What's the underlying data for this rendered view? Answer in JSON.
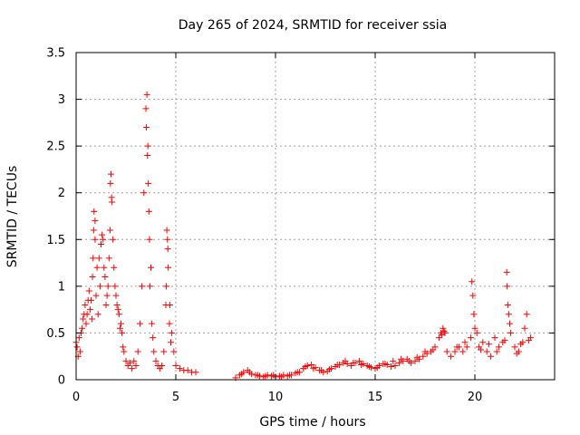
{
  "chart_data": {
    "type": "scatter",
    "title": "Day 265 of 2024, SRMTID for receiver ssia",
    "xlabel": "GPS time / hours",
    "ylabel": "SRMTID / TECUs",
    "xlim": [
      0,
      24
    ],
    "ylim": [
      0,
      3.5
    ],
    "xticks": [
      0,
      5,
      10,
      15,
      20
    ],
    "xtick_labels": [
      "0",
      "5",
      "10",
      "15",
      "20"
    ],
    "yticks": [
      0,
      0.5,
      1,
      1.5,
      2,
      2.5,
      3,
      3.5
    ],
    "ytick_labels": [
      "0",
      "0.5",
      "1",
      "1.5",
      "2",
      "2.5",
      "3",
      "3.5"
    ],
    "grid": true,
    "marker": "+",
    "color": "#ff0000",
    "series": [
      {
        "name": "SRMTID",
        "x": [
          0.0,
          0.1,
          0.2,
          0.3,
          0.4,
          0.5,
          0.6,
          0.7,
          0.8,
          0.85,
          0.9,
          0.95,
          1.0,
          1.1,
          1.2,
          1.3,
          1.4,
          1.5,
          1.6,
          1.7,
          1.75,
          1.8,
          1.9,
          2.0,
          2.1,
          2.2,
          2.3,
          2.4,
          2.5,
          2.6,
          2.7,
          2.8,
          2.9,
          3.0,
          3.1,
          3.2,
          3.3,
          3.4,
          3.5,
          3.55,
          3.6,
          3.65,
          3.7,
          3.8,
          3.9,
          4.0,
          4.1,
          4.2,
          4.3,
          4.4,
          4.5,
          4.55,
          4.6,
          4.7,
          4.8,
          4.9,
          5.0,
          5.2,
          5.4,
          5.6,
          5.8,
          6.0,
          0.05,
          0.15,
          0.25,
          0.35,
          0.45,
          0.55,
          0.65,
          0.75,
          0.82,
          0.88,
          0.95,
          1.05,
          1.15,
          1.25,
          1.35,
          1.45,
          1.55,
          1.65,
          1.72,
          1.78,
          1.85,
          1.95,
          2.05,
          2.15,
          2.25,
          2.35,
          3.52,
          3.58,
          3.62,
          3.68,
          3.75,
          3.85,
          4.52,
          4.58,
          4.62,
          4.68,
          4.75,
          8.0,
          8.2,
          8.4,
          8.6,
          8.8,
          9.0,
          9.2,
          9.4,
          9.6,
          9.8,
          10.0,
          10.2,
          10.4,
          10.6,
          10.8,
          11.0,
          11.2,
          11.4,
          11.6,
          11.8,
          12.0,
          12.2,
          12.4,
          12.6,
          12.8,
          13.0,
          13.2,
          13.4,
          13.6,
          13.8,
          14.0,
          14.2,
          14.4,
          14.6,
          14.8,
          15.0,
          15.2,
          15.4,
          15.6,
          15.8,
          16.0,
          16.2,
          16.4,
          16.6,
          16.8,
          17.0,
          17.2,
          17.4,
          17.6,
          17.8,
          18.0,
          18.2,
          18.3,
          18.4,
          18.5,
          18.6,
          18.8,
          19.0,
          19.2,
          19.4,
          19.6,
          19.8,
          19.85,
          19.9,
          19.95,
          20.0,
          20.1,
          20.2,
          20.4,
          20.6,
          20.8,
          21.0,
          21.2,
          21.4,
          21.6,
          21.62,
          21.65,
          21.7,
          21.75,
          21.8,
          22.0,
          22.2,
          22.4,
          22.5,
          22.6,
          22.8,
          8.3,
          8.7,
          9.1,
          9.5,
          9.9,
          10.3,
          10.7,
          11.1,
          11.5,
          11.9,
          12.3,
          12.7,
          13.1,
          13.5,
          13.9,
          14.3,
          14.7,
          15.1,
          15.5,
          15.9,
          16.3,
          16.7,
          17.1,
          17.5,
          17.9,
          18.35,
          18.45,
          19.1,
          19.5,
          20.3,
          20.7,
          21.1,
          21.5,
          22.1,
          22.3,
          22.7
        ],
        "y": [
          0.4,
          0.25,
          0.3,
          0.55,
          0.7,
          0.6,
          0.85,
          0.75,
          0.65,
          1.3,
          1.8,
          1.5,
          0.9,
          0.7,
          1.0,
          1.55,
          1.2,
          0.8,
          1.0,
          1.6,
          2.2,
          1.9,
          1.2,
          0.9,
          0.75,
          0.55,
          0.5,
          0.3,
          0.2,
          0.15,
          0.18,
          0.12,
          0.2,
          0.15,
          0.3,
          0.6,
          1.0,
          2.0,
          2.9,
          3.05,
          2.5,
          1.8,
          1.0,
          0.6,
          0.3,
          0.2,
          0.15,
          0.12,
          0.15,
          0.3,
          0.8,
          1.6,
          1.4,
          0.8,
          0.5,
          0.3,
          0.15,
          0.12,
          0.1,
          0.1,
          0.08,
          0.08,
          0.35,
          0.45,
          0.5,
          0.65,
          0.8,
          0.7,
          0.95,
          0.85,
          1.1,
          1.6,
          1.7,
          1.2,
          1.3,
          1.45,
          1.5,
          1.1,
          0.9,
          1.3,
          2.1,
          1.95,
          1.5,
          1.0,
          0.8,
          0.7,
          0.6,
          0.35,
          2.7,
          2.4,
          2.1,
          1.5,
          1.2,
          0.45,
          1.0,
          1.5,
          1.2,
          0.6,
          0.4,
          0.02,
          0.05,
          0.08,
          0.1,
          0.06,
          0.05,
          0.04,
          0.03,
          0.05,
          0.04,
          0.03,
          0.04,
          0.05,
          0.04,
          0.05,
          0.07,
          0.08,
          0.12,
          0.15,
          0.16,
          0.13,
          0.1,
          0.08,
          0.09,
          0.12,
          0.14,
          0.16,
          0.18,
          0.17,
          0.15,
          0.18,
          0.2,
          0.17,
          0.15,
          0.13,
          0.12,
          0.15,
          0.17,
          0.16,
          0.14,
          0.15,
          0.18,
          0.2,
          0.22,
          0.18,
          0.2,
          0.22,
          0.25,
          0.28,
          0.3,
          0.35,
          0.45,
          0.5,
          0.55,
          0.5,
          0.3,
          0.25,
          0.3,
          0.35,
          0.3,
          0.35,
          0.45,
          1.05,
          0.9,
          0.7,
          0.55,
          0.5,
          0.35,
          0.4,
          0.3,
          0.25,
          0.45,
          0.35,
          0.4,
          1.15,
          1.0,
          0.8,
          0.7,
          0.6,
          0.5,
          0.35,
          0.3,
          0.4,
          0.55,
          0.7,
          0.45,
          0.06,
          0.08,
          0.05,
          0.04,
          0.05,
          0.03,
          0.05,
          0.08,
          0.14,
          0.12,
          0.1,
          0.11,
          0.16,
          0.2,
          0.18,
          0.16,
          0.14,
          0.13,
          0.17,
          0.2,
          0.22,
          0.2,
          0.24,
          0.3,
          0.32,
          0.48,
          0.52,
          0.35,
          0.4,
          0.32,
          0.38,
          0.3,
          0.42,
          0.28,
          0.38,
          0.42
        ]
      }
    ]
  }
}
